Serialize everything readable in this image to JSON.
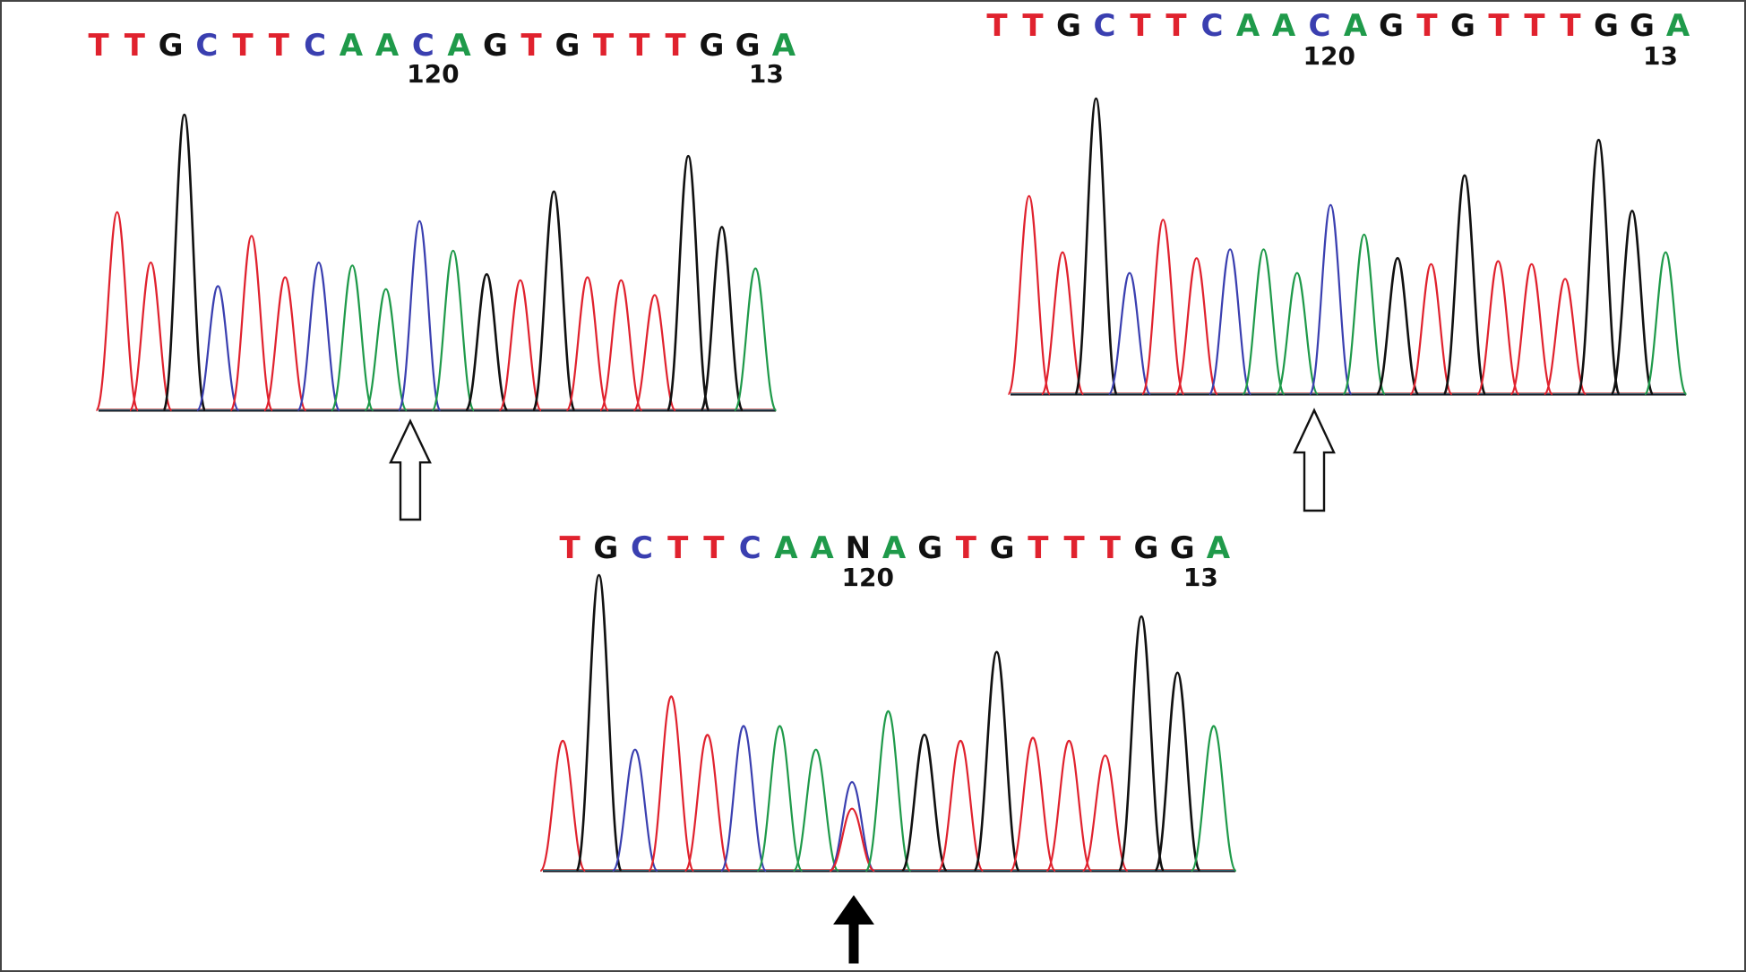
{
  "colors": {
    "A": "#1f9a4a",
    "C": "#3a3fb0",
    "G": "#111111",
    "T": "#e0222e",
    "N": "#111111",
    "border": "#444444",
    "background": "#ffffff"
  },
  "icons": {
    "open_arrow": "open-up-arrow-icon",
    "filled_arrow": "filled-up-arrow-icon"
  },
  "chart_data": [
    {
      "type": "line",
      "name_hint": "chromatogram-top-left",
      "sequence": "TTGCTTCAACAGTGTTTGGA",
      "position_labels": [
        "120",
        "13"
      ],
      "label_after_base": [
        10,
        19
      ],
      "peaks": [
        {
          "base": "T",
          "h": 0.67
        },
        {
          "base": "T",
          "h": 0.5
        },
        {
          "base": "G",
          "h": 1.0
        },
        {
          "base": "C",
          "h": 0.42
        },
        {
          "base": "T",
          "h": 0.59
        },
        {
          "base": "T",
          "h": 0.45
        },
        {
          "base": "C",
          "h": 0.5
        },
        {
          "base": "A",
          "h": 0.49
        },
        {
          "base": "A",
          "h": 0.41
        },
        {
          "base": "C",
          "h": 0.64
        },
        {
          "base": "A",
          "h": 0.54
        },
        {
          "base": "G",
          "h": 0.46
        },
        {
          "base": "T",
          "h": 0.44
        },
        {
          "base": "G",
          "h": 0.74
        },
        {
          "base": "T",
          "h": 0.45
        },
        {
          "base": "T",
          "h": 0.44
        },
        {
          "base": "T",
          "h": 0.39
        },
        {
          "base": "G",
          "h": 0.86
        },
        {
          "base": "G",
          "h": 0.62
        },
        {
          "base": "A",
          "h": 0.48
        }
      ],
      "marker_after_base": 9,
      "marker": "open"
    },
    {
      "type": "line",
      "name_hint": "chromatogram-top-right",
      "sequence": "TTGCTTCAACAGTGTTTGGA",
      "position_labels": [
        "120",
        "13"
      ],
      "label_after_base": [
        10,
        19
      ],
      "peaks": [
        {
          "base": "T",
          "h": 0.67
        },
        {
          "base": "T",
          "h": 0.48
        },
        {
          "base": "G",
          "h": 1.0
        },
        {
          "base": "C",
          "h": 0.41
        },
        {
          "base": "T",
          "h": 0.59
        },
        {
          "base": "T",
          "h": 0.46
        },
        {
          "base": "C",
          "h": 0.49
        },
        {
          "base": "A",
          "h": 0.49
        },
        {
          "base": "A",
          "h": 0.41
        },
        {
          "base": "C",
          "h": 0.64
        },
        {
          "base": "A",
          "h": 0.54
        },
        {
          "base": "G",
          "h": 0.46
        },
        {
          "base": "T",
          "h": 0.44
        },
        {
          "base": "G",
          "h": 0.74
        },
        {
          "base": "T",
          "h": 0.45
        },
        {
          "base": "T",
          "h": 0.44
        },
        {
          "base": "T",
          "h": 0.39
        },
        {
          "base": "G",
          "h": 0.86
        },
        {
          "base": "G",
          "h": 0.62
        },
        {
          "base": "A",
          "h": 0.48
        }
      ],
      "marker_after_base": 9,
      "marker": "open"
    },
    {
      "type": "line",
      "name_hint": "chromatogram-bottom",
      "sequence": "TGCTTCAANAGTGTTTGGA",
      "position_labels": [
        "120",
        "13"
      ],
      "label_after_base": [
        9,
        18
      ],
      "peaks": [
        {
          "base": "T",
          "h": 0.44
        },
        {
          "base": "G",
          "h": 1.0
        },
        {
          "base": "C",
          "h": 0.41
        },
        {
          "base": "T",
          "h": 0.59
        },
        {
          "base": "T",
          "h": 0.46
        },
        {
          "base": "C",
          "h": 0.49
        },
        {
          "base": "A",
          "h": 0.49
        },
        {
          "base": "A",
          "h": 0.41
        },
        {
          "base": "N",
          "h": 0.3,
          "overlay": [
            {
              "base": "C",
              "h": 0.3
            },
            {
              "base": "T",
              "h": 0.21
            }
          ]
        },
        {
          "base": "A",
          "h": 0.54
        },
        {
          "base": "G",
          "h": 0.46
        },
        {
          "base": "T",
          "h": 0.44
        },
        {
          "base": "G",
          "h": 0.74
        },
        {
          "base": "T",
          "h": 0.45
        },
        {
          "base": "T",
          "h": 0.44
        },
        {
          "base": "T",
          "h": 0.39
        },
        {
          "base": "G",
          "h": 0.86
        },
        {
          "base": "G",
          "h": 0.67
        },
        {
          "base": "A",
          "h": 0.49
        }
      ],
      "marker_after_base": 8,
      "marker": "filled"
    }
  ]
}
